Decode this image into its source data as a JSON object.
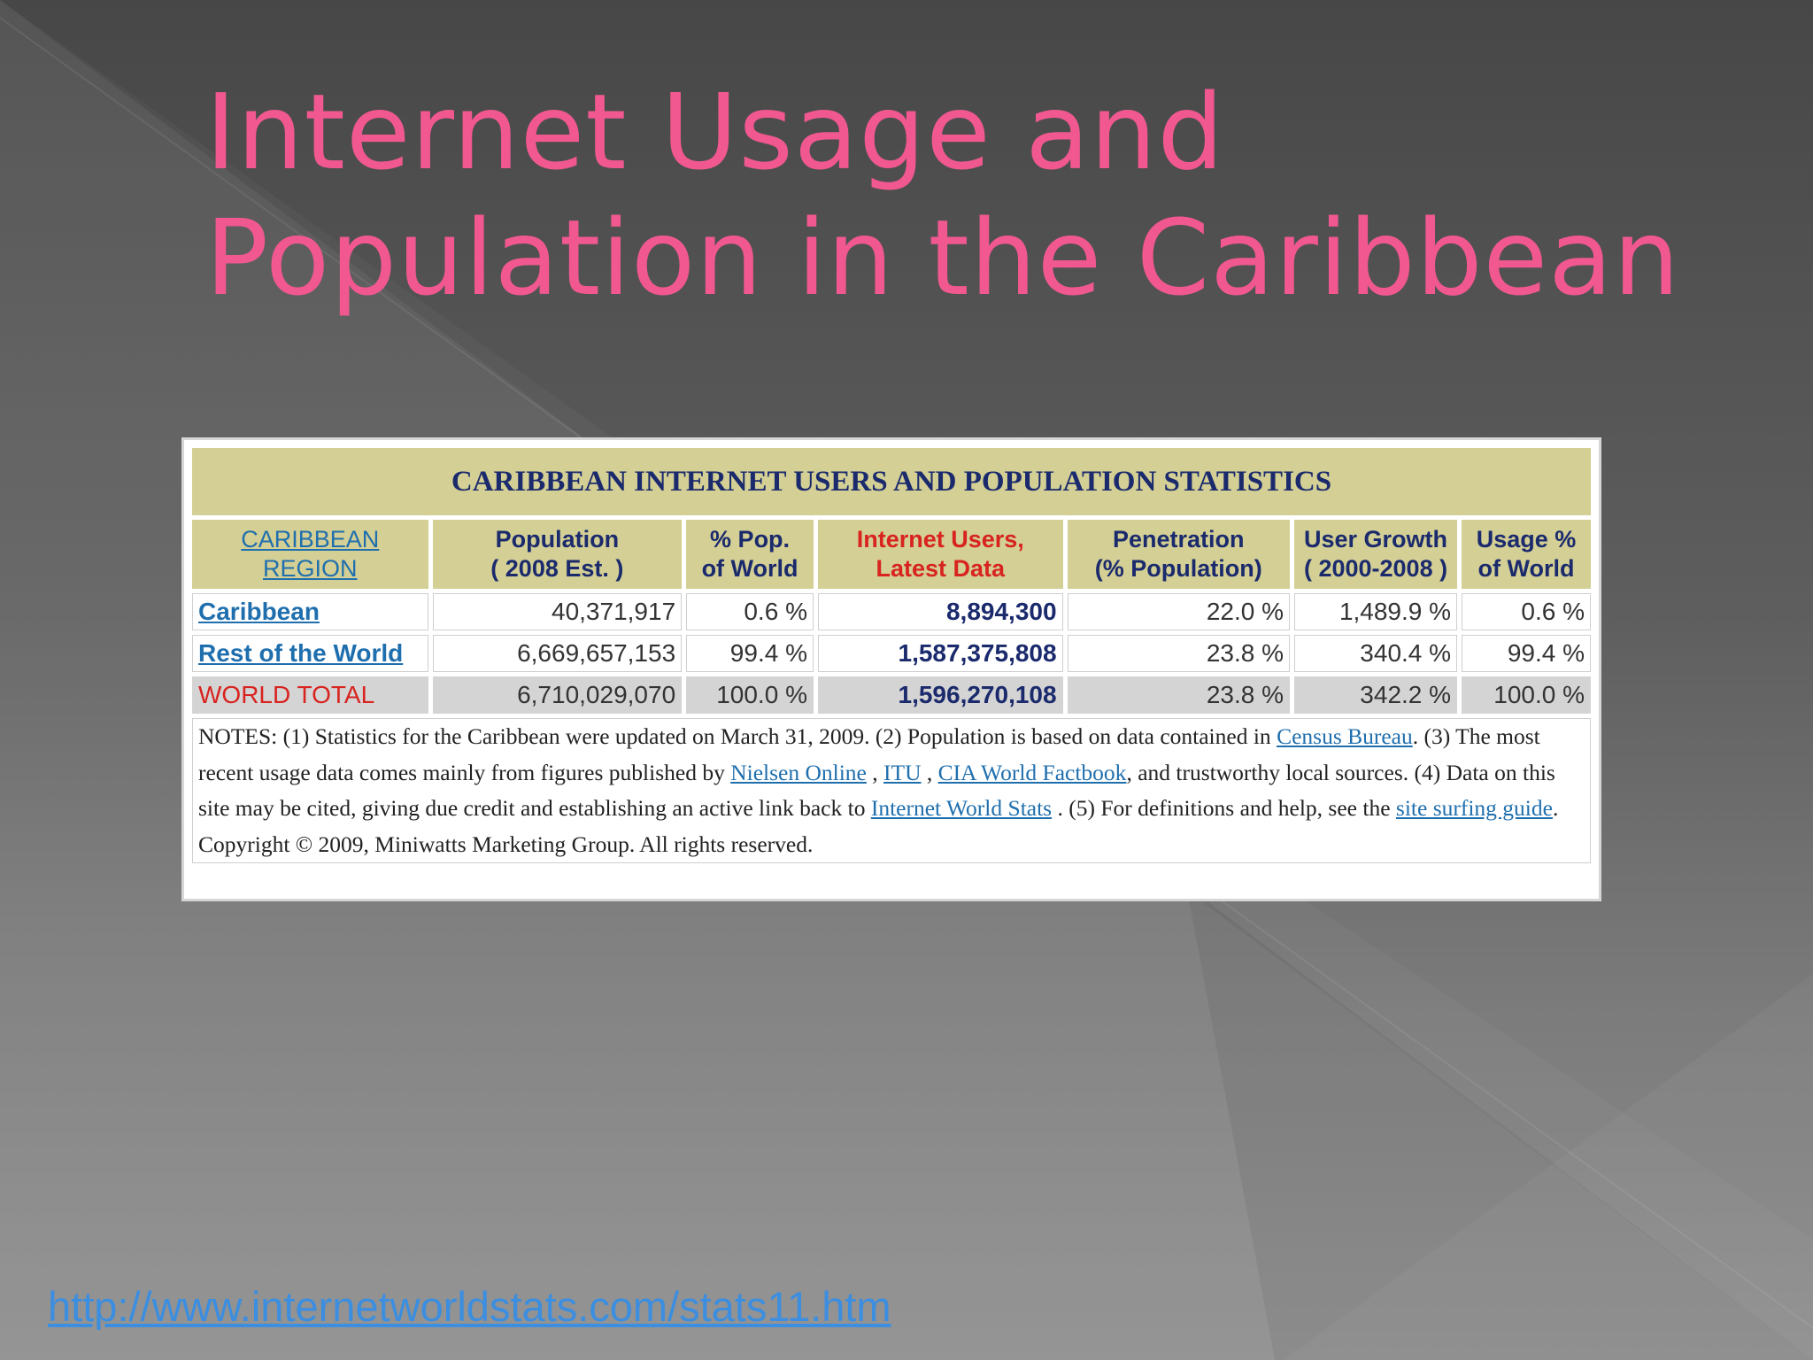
{
  "slide": {
    "title_line1": "Internet Usage and",
    "title_line2": "Population in the Caribbean",
    "source_url": "http://www.internetworldstats.com/stats11.htm"
  },
  "table": {
    "caption": "CARIBBEAN INTERNET USERS AND POPULATION STATISTICS",
    "headers": {
      "region": [
        "CARIBBEAN",
        "REGION"
      ],
      "population": [
        "Population",
        "( 2008 Est. )"
      ],
      "pct_pop": [
        "% Pop.",
        "of World"
      ],
      "internet_users": [
        "Internet Users,",
        "Latest Data"
      ],
      "penetration": [
        "Penetration",
        "(% Population)"
      ],
      "user_growth": [
        "User Growth",
        "( 2000-2008 )"
      ],
      "usage_pct": [
        "Usage %",
        "of World"
      ]
    },
    "rows": [
      {
        "region": "Caribbean",
        "population": "40,371,917",
        "pct_pop": "0.6 %",
        "internet_users": "8,894,300",
        "penetration": "22.0 %",
        "user_growth": "1,489.9 %",
        "usage_pct": "0.6 %"
      },
      {
        "region": "Rest of the World",
        "population": "6,669,657,153",
        "pct_pop": "99.4 %",
        "internet_users": "1,587,375,808",
        "penetration": "23.8 %",
        "user_growth": "340.4 %",
        "usage_pct": "99.4 %"
      },
      {
        "region": "WORLD TOTAL",
        "population": "6,710,029,070",
        "pct_pop": "100.0 %",
        "internet_users": "1,596,270,108",
        "penetration": "23.8 %",
        "user_growth": "342.2 %",
        "usage_pct": "100.0 %"
      }
    ],
    "notes": {
      "t1": "NOTES: (1) Statistics for the Caribbean were updated on March 31, 2009. (2) Population is based on data contained in ",
      "l1": "Census Bureau",
      "t2": ". (3) The most recent usage data comes mainly from figures published by ",
      "l2": "Nielsen Online",
      "t3": " , ",
      "l3": "ITU",
      "t4": " , ",
      "l4": "CIA World Factbook",
      "t5": ", and trustworthy local sources. (4) Data on this site may be cited, giving due credit and establishing an active link back to ",
      "l5": "Internet World Stats",
      "t6": " . (5) For definitions and help, see the ",
      "l6": "site surfing guide",
      "t7": ". Copyright © 2009, Miniwatts Marketing Group. All rights reserved."
    }
  }
}
